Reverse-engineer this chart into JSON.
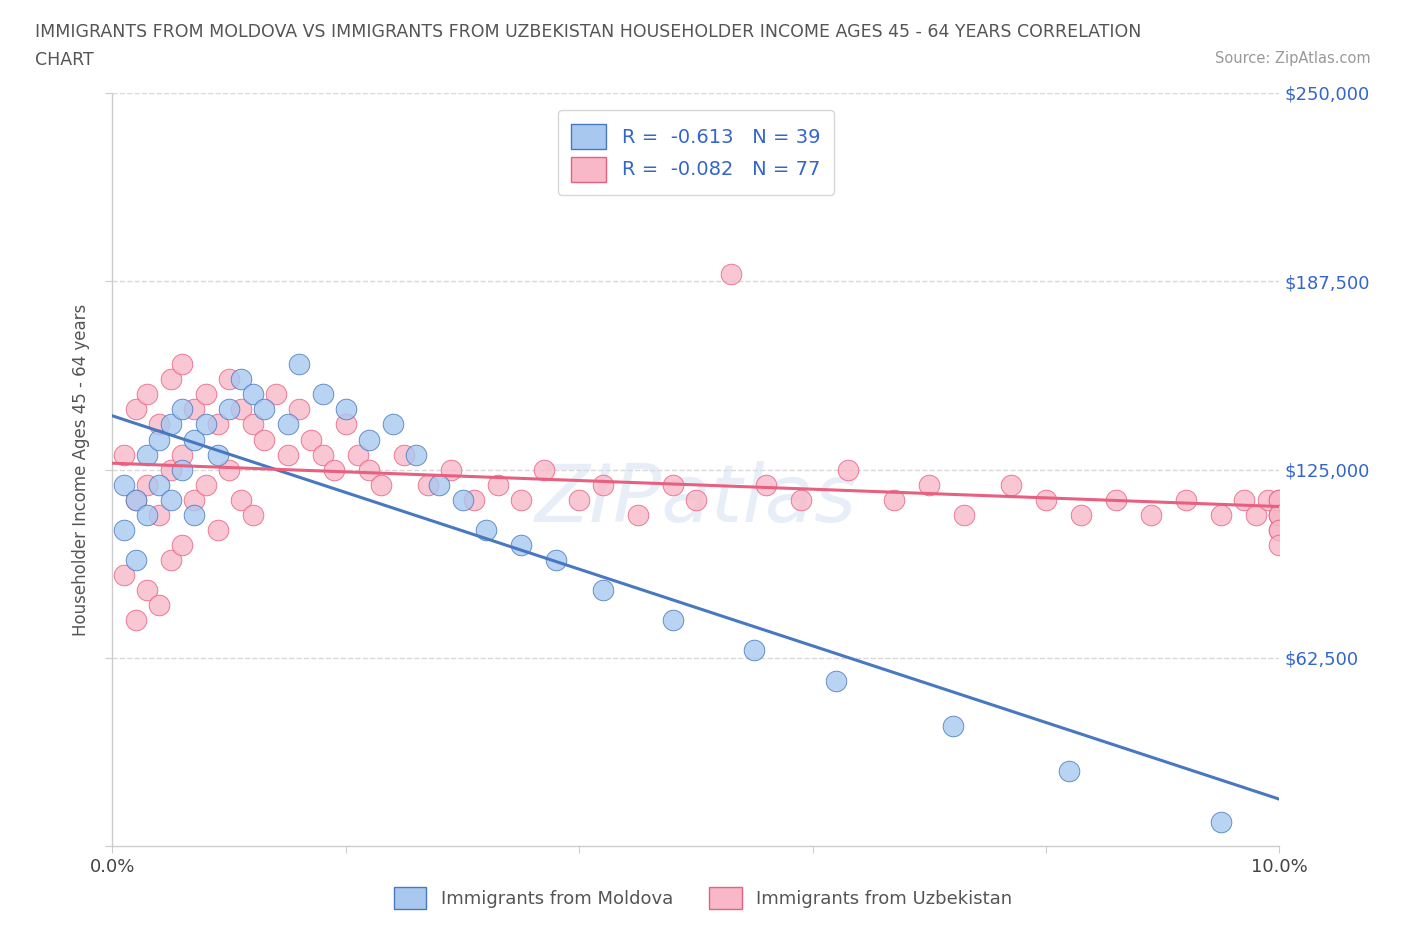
{
  "title_line1": "IMMIGRANTS FROM MOLDOVA VS IMMIGRANTS FROM UZBEKISTAN HOUSEHOLDER INCOME AGES 45 - 64 YEARS CORRELATION",
  "title_line2": "CHART",
  "source": "Source: ZipAtlas.com",
  "ylabel": "Householder Income Ages 45 - 64 years",
  "xlim": [
    0.0,
    0.1
  ],
  "ylim": [
    0,
    250000
  ],
  "yticks": [
    0,
    62500,
    125000,
    187500,
    250000
  ],
  "xticks": [
    0.0,
    0.02,
    0.04,
    0.06,
    0.08,
    0.1
  ],
  "moldova_color": "#a8c8f0",
  "uzbekistan_color": "#f8b8c8",
  "moldova_edge_color": "#4878c0",
  "uzbekistan_edge_color": "#e86080",
  "moldova_line_color": "#4878c0",
  "uzbekistan_line_color": "#e86080",
  "moldova_R": -0.613,
  "moldova_N": 39,
  "uzbekistan_R": -0.082,
  "uzbekistan_N": 77,
  "legend_moldova": "Immigrants from Moldova",
  "legend_uzbekistan": "Immigrants from Uzbekistan",
  "moldova_scatter_x": [
    0.001,
    0.001,
    0.002,
    0.002,
    0.003,
    0.003,
    0.004,
    0.004,
    0.005,
    0.005,
    0.006,
    0.006,
    0.007,
    0.007,
    0.008,
    0.009,
    0.01,
    0.011,
    0.012,
    0.013,
    0.015,
    0.016,
    0.018,
    0.02,
    0.022,
    0.024,
    0.026,
    0.028,
    0.03,
    0.032,
    0.035,
    0.038,
    0.042,
    0.048,
    0.055,
    0.062,
    0.072,
    0.082,
    0.095
  ],
  "moldova_scatter_y": [
    120000,
    105000,
    115000,
    95000,
    130000,
    110000,
    135000,
    120000,
    140000,
    115000,
    145000,
    125000,
    135000,
    110000,
    140000,
    130000,
    145000,
    155000,
    150000,
    145000,
    140000,
    160000,
    150000,
    145000,
    135000,
    140000,
    130000,
    120000,
    115000,
    105000,
    100000,
    95000,
    85000,
    75000,
    65000,
    55000,
    40000,
    25000,
    8000
  ],
  "uzbekistan_scatter_x": [
    0.001,
    0.001,
    0.002,
    0.002,
    0.002,
    0.003,
    0.003,
    0.003,
    0.004,
    0.004,
    0.004,
    0.005,
    0.005,
    0.005,
    0.006,
    0.006,
    0.006,
    0.007,
    0.007,
    0.008,
    0.008,
    0.009,
    0.009,
    0.01,
    0.01,
    0.011,
    0.011,
    0.012,
    0.012,
    0.013,
    0.014,
    0.015,
    0.016,
    0.017,
    0.018,
    0.019,
    0.02,
    0.021,
    0.022,
    0.023,
    0.025,
    0.027,
    0.029,
    0.031,
    0.033,
    0.035,
    0.037,
    0.04,
    0.042,
    0.045,
    0.048,
    0.05,
    0.053,
    0.056,
    0.059,
    0.063,
    0.067,
    0.07,
    0.073,
    0.077,
    0.08,
    0.083,
    0.086,
    0.089,
    0.092,
    0.095,
    0.097,
    0.098,
    0.099,
    0.1,
    0.1,
    0.1,
    0.1,
    0.1,
    0.1,
    0.1,
    0.1
  ],
  "uzbekistan_scatter_y": [
    130000,
    90000,
    145000,
    115000,
    75000,
    150000,
    120000,
    85000,
    140000,
    110000,
    80000,
    155000,
    125000,
    95000,
    160000,
    130000,
    100000,
    145000,
    115000,
    150000,
    120000,
    140000,
    105000,
    155000,
    125000,
    145000,
    115000,
    140000,
    110000,
    135000,
    150000,
    130000,
    145000,
    135000,
    130000,
    125000,
    140000,
    130000,
    125000,
    120000,
    130000,
    120000,
    125000,
    115000,
    120000,
    115000,
    125000,
    115000,
    120000,
    110000,
    120000,
    115000,
    190000,
    120000,
    115000,
    125000,
    115000,
    120000,
    110000,
    120000,
    115000,
    110000,
    115000,
    110000,
    115000,
    110000,
    115000,
    110000,
    115000,
    110000,
    115000,
    110000,
    105000,
    115000,
    110000,
    105000,
    100000
  ],
  "watermark_text": "ZIPatlas",
  "background_color": "#ffffff",
  "grid_color": "#d8d8d8",
  "axis_color": "#cccccc",
  "text_color": "#3366cc",
  "title_color": "#555555",
  "label_color": "#555555"
}
